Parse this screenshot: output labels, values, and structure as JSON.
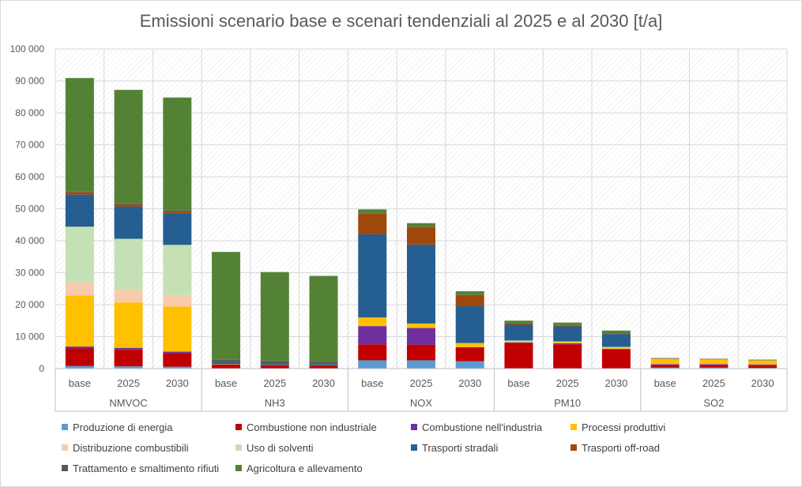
{
  "chart_data": {
    "type": "bar",
    "stacked": true,
    "title": "Emissioni scenario base e scenari tendenziali al 2025 e al 2030 [t/a]",
    "ylim": [
      0,
      100000
    ],
    "ytick_values": [
      0,
      10000,
      20000,
      30000,
      40000,
      50000,
      60000,
      70000,
      80000,
      90000,
      100000
    ],
    "ytick_labels": [
      "0",
      "10 000",
      "20 000",
      "30 000",
      "40 000",
      "50 000",
      "60 000",
      "70 000",
      "80 000",
      "90 000",
      "100 000"
    ],
    "groups": [
      "NMVOC",
      "NH3",
      "NOX",
      "PM10",
      "SO2"
    ],
    "scenarios": [
      "base",
      "2025",
      "2030"
    ],
    "grid": true,
    "legend_position": "bottom",
    "series": [
      {
        "name": "Produzione di energia",
        "color": "#5b9bd5",
        "values": [
          [
            800,
            700,
            600
          ],
          [
            100,
            100,
            100
          ],
          [
            2600,
            2600,
            2300
          ],
          [
            100,
            100,
            100
          ],
          [
            300,
            300,
            200
          ]
        ]
      },
      {
        "name": "Combustione non industriale",
        "color": "#c00000",
        "values": [
          [
            5500,
            5200,
            4200
          ],
          [
            1200,
            1000,
            900
          ],
          [
            5000,
            4900,
            4400
          ],
          [
            7800,
            7500,
            5900
          ],
          [
            700,
            700,
            700
          ]
        ]
      },
      {
        "name": "Combustione nell'industria",
        "color": "#7030a0",
        "values": [
          [
            600,
            600,
            500
          ],
          [
            0,
            0,
            0
          ],
          [
            5700,
            5200,
            0
          ],
          [
            300,
            300,
            200
          ],
          [
            400,
            400,
            400
          ]
        ]
      },
      {
        "name": "Processi produttivi",
        "color": "#ffc000",
        "values": [
          [
            16000,
            14200,
            14100
          ],
          [
            100,
            100,
            100
          ],
          [
            2700,
            1400,
            1300
          ],
          [
            400,
            400,
            400
          ],
          [
            1700,
            1500,
            1300
          ]
        ]
      },
      {
        "name": "Distribuzione combustibili",
        "color": "#f8cbad",
        "values": [
          [
            4000,
            3900,
            3600
          ],
          [
            0,
            0,
            0
          ],
          [
            0,
            0,
            0
          ],
          [
            0,
            0,
            0
          ],
          [
            0,
            0,
            0
          ]
        ]
      },
      {
        "name": "Uso di solventi",
        "color": "#c5e0b4",
        "values": [
          [
            17500,
            16000,
            15700
          ],
          [
            0,
            0,
            0
          ],
          [
            0,
            0,
            0
          ],
          [
            200,
            200,
            200
          ],
          [
            0,
            0,
            0
          ]
        ]
      },
      {
        "name": "Trasporti stradali",
        "color": "#255e91",
        "values": [
          [
            10000,
            10100,
            9800
          ],
          [
            600,
            500,
            400
          ],
          [
            26000,
            24700,
            11500
          ],
          [
            4900,
            4700,
            4000
          ],
          [
            100,
            100,
            100
          ]
        ]
      },
      {
        "name": "Trasporti off-road",
        "color": "#9e480e",
        "values": [
          [
            700,
            700,
            600
          ],
          [
            0,
            0,
            0
          ],
          [
            6500,
            5500,
            3500
          ],
          [
            400,
            300,
            200
          ],
          [
            100,
            100,
            100
          ]
        ]
      },
      {
        "name": "Trattamento e smaltimento rifiuti",
        "color": "#595959",
        "values": [
          [
            300,
            300,
            300
          ],
          [
            800,
            700,
            700
          ],
          [
            100,
            100,
            100
          ],
          [
            100,
            100,
            100
          ],
          [
            0,
            0,
            0
          ]
        ]
      },
      {
        "name": "Agricoltura e allevamento",
        "color": "#548235",
        "values": [
          [
            35500,
            35500,
            35400
          ],
          [
            33700,
            27800,
            26800
          ],
          [
            1200,
            1100,
            1100
          ],
          [
            800,
            800,
            800
          ],
          [
            0,
            0,
            0
          ]
        ]
      }
    ]
  },
  "colors": {
    "axis_text": "#595959",
    "gridline": "#d9d9d9",
    "plot_hatch": "#e6e6e6"
  }
}
